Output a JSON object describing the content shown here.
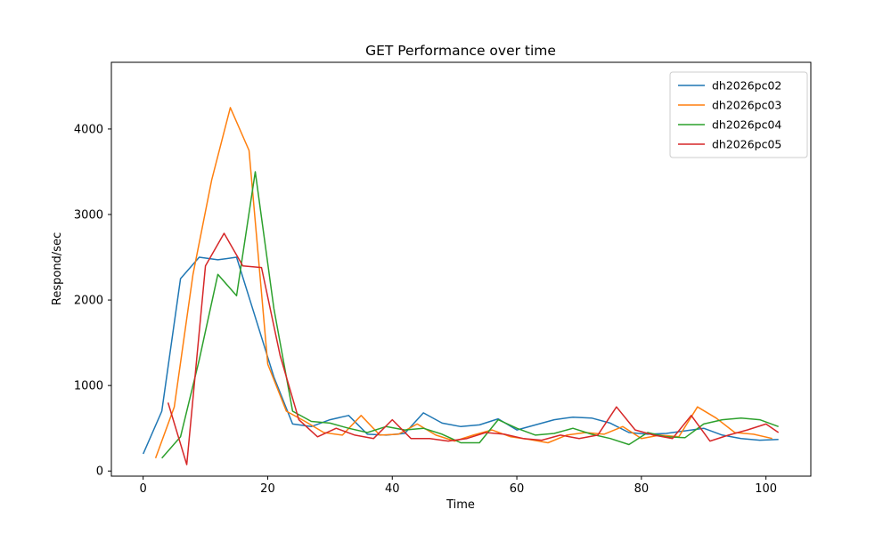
{
  "chart_data": {
    "type": "line",
    "title": "GET Performance over time",
    "xlabel": "Time",
    "ylabel": "Respond/sec",
    "xlim": [
      -5.1,
      107.2
    ],
    "ylim": [
      -60,
      4780
    ],
    "xticks": [
      0,
      20,
      40,
      60,
      80,
      100
    ],
    "yticks": [
      0,
      1000,
      2000,
      3000,
      4000
    ],
    "grid": false,
    "legend_position": "upper right",
    "background_color": "#ffffff",
    "spine_color": "#000000",
    "legend_border_color": "#cccccc",
    "series": [
      {
        "name": "dh2026pc02",
        "color": "#1f77b4",
        "x": [
          0,
          3,
          6,
          9,
          12,
          15,
          18,
          21,
          24,
          27,
          30,
          33,
          36,
          39,
          42,
          45,
          48,
          51,
          54,
          57,
          60,
          63,
          66,
          69,
          72,
          75,
          78,
          81,
          84,
          87,
          90,
          93,
          96,
          99,
          102
        ],
        "y": [
          200,
          700,
          2250,
          2500,
          2470,
          2500,
          1800,
          1100,
          550,
          520,
          600,
          650,
          430,
          420,
          440,
          680,
          560,
          520,
          540,
          610,
          480,
          540,
          600,
          630,
          620,
          560,
          450,
          430,
          440,
          470,
          500,
          420,
          380,
          360,
          370
        ]
      },
      {
        "name": "dh2026pc03",
        "color": "#ff7f0e",
        "x": [
          2,
          5,
          8,
          11,
          14,
          17,
          20,
          23,
          26,
          29,
          32,
          35,
          38,
          41,
          44,
          47,
          50,
          53,
          56,
          59,
          62,
          65,
          68,
          71,
          74,
          77,
          80,
          83,
          86,
          89,
          92,
          95,
          98,
          101
        ],
        "y": [
          150,
          750,
          2300,
          3400,
          4250,
          3750,
          1250,
          700,
          580,
          450,
          420,
          650,
          420,
          430,
          550,
          420,
          350,
          420,
          480,
          400,
          370,
          330,
          420,
          450,
          430,
          520,
          380,
          420,
          400,
          750,
          620,
          450,
          430,
          380
        ]
      },
      {
        "name": "dh2026pc04",
        "color": "#2ca02c",
        "x": [
          3,
          6,
          9,
          12,
          15,
          18,
          21,
          24,
          27,
          30,
          33,
          36,
          39,
          42,
          45,
          48,
          51,
          54,
          57,
          60,
          63,
          66,
          69,
          72,
          75,
          78,
          81,
          84,
          87,
          90,
          93,
          96,
          99,
          102
        ],
        "y": [
          150,
          400,
          1300,
          2300,
          2050,
          3500,
          1900,
          700,
          580,
          560,
          500,
          450,
          520,
          480,
          500,
          430,
          330,
          330,
          600,
          500,
          420,
          440,
          500,
          430,
          380,
          310,
          450,
          400,
          390,
          550,
          600,
          620,
          600,
          520
        ]
      },
      {
        "name": "dh2026pc05",
        "color": "#d62728",
        "x": [
          4,
          7,
          10,
          13,
          16,
          19,
          22,
          25,
          28,
          31,
          34,
          37,
          40,
          43,
          46,
          49,
          52,
          55,
          58,
          61,
          64,
          67,
          70,
          73,
          76,
          79,
          82,
          85,
          88,
          91,
          94,
          97,
          100,
          102
        ],
        "y": [
          800,
          75,
          2400,
          2780,
          2400,
          2380,
          1350,
          600,
          400,
          500,
          420,
          380,
          600,
          380,
          380,
          350,
          380,
          450,
          430,
          380,
          360,
          420,
          380,
          420,
          750,
          480,
          420,
          380,
          650,
          350,
          420,
          480,
          550,
          450
        ]
      }
    ]
  }
}
